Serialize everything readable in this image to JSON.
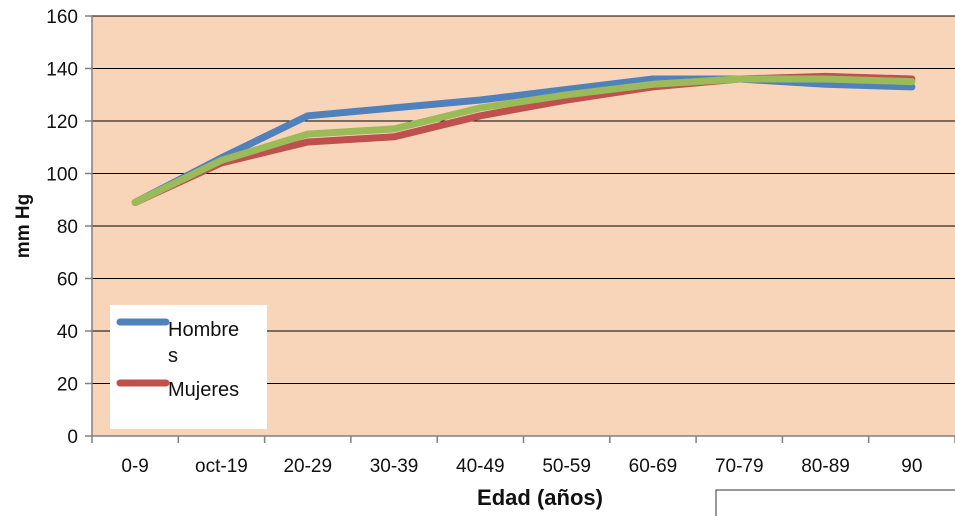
{
  "chart_data": {
    "type": "line",
    "xlabel": "Edad (años)",
    "ylabel": "mm Hg",
    "categories": [
      "0-9",
      "oct-19",
      "20-29",
      "30-39",
      "40-49",
      "50-59",
      "60-69",
      "70-79",
      "80-89",
      "90"
    ],
    "ylim": [
      0,
      160
    ],
    "yticks": [
      0,
      20,
      40,
      60,
      80,
      100,
      120,
      140,
      160
    ],
    "grid": true,
    "legend_position": "bottom-left",
    "plot_background": "#f8d5b8",
    "series": [
      {
        "name": "Hombres",
        "color": "#4f81bd",
        "values": [
          89,
          106,
          122,
          125,
          128,
          132,
          136,
          136,
          134,
          133
        ]
      },
      {
        "name": "Mujeres",
        "color": "#c0504d",
        "values": [
          89,
          104,
          112,
          114,
          122,
          128,
          133,
          136,
          137,
          136
        ]
      },
      {
        "color": "#9bbb59",
        "values": [
          89,
          105,
          115,
          117,
          125,
          130,
          134,
          136,
          136,
          135
        ]
      }
    ],
    "legend": {
      "entries": [
        {
          "line1": "Hombre",
          "line2": "s",
          "color": "#4f81bd"
        },
        {
          "line1": "Mujeres",
          "color": "#c0504d"
        }
      ]
    }
  }
}
